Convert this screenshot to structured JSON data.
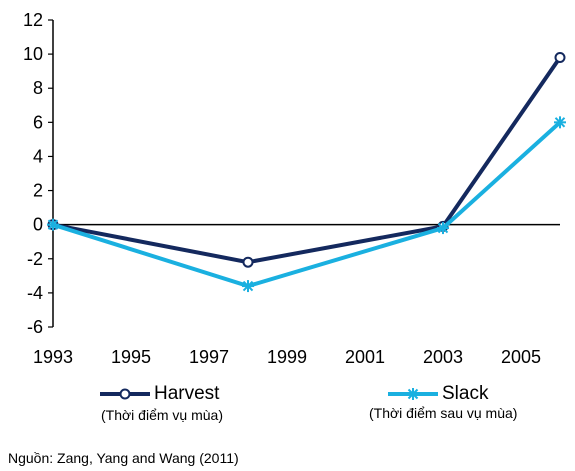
{
  "chart_data": {
    "type": "line",
    "x": [
      1993,
      1998,
      2003,
      2006
    ],
    "xticks": [
      "1993",
      "1995",
      "1997",
      "1999",
      "2001",
      "2003",
      "2005"
    ],
    "xlim": [
      1993,
      2006
    ],
    "ylim": [
      -6,
      12
    ],
    "yticks": [
      "12",
      "10",
      "8",
      "6",
      "4",
      "2",
      "0",
      "-2",
      "-4",
      "-6"
    ],
    "series": [
      {
        "name": "Harvest",
        "note": "(Thời điểm vụ mùa)",
        "color": "#14295e",
        "marker": "circle",
        "values": [
          0,
          -2.2,
          -0.1,
          9.8
        ]
      },
      {
        "name": "Slack",
        "note": "(Thời điểm sau vụ mùa)",
        "color": "#1ab0e0",
        "marker": "star",
        "values": [
          0,
          -3.6,
          -0.2,
          6.0
        ]
      }
    ]
  },
  "source_text": "Nguồn:  Zang, Yang and Wang (2011)"
}
